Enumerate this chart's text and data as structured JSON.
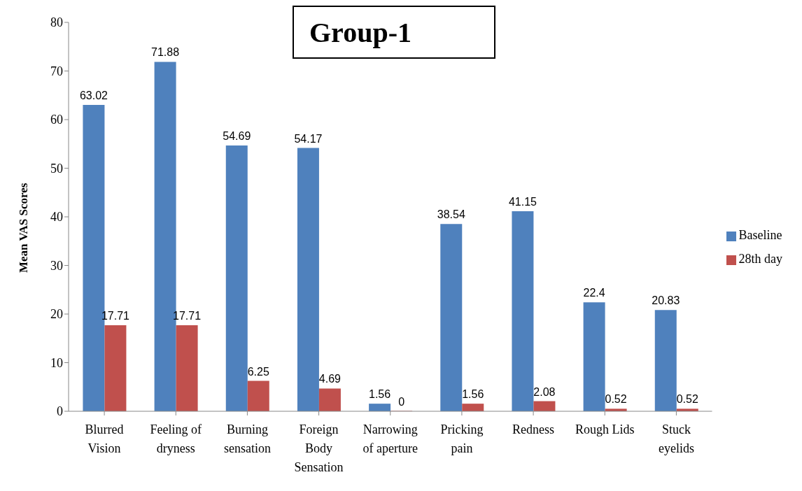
{
  "chart_data": {
    "type": "bar",
    "title": "Group-1",
    "ylabel": "Mean VAS Scores",
    "categories": [
      "Blurred Vision",
      "Feeling of dryness",
      "Burning sensation",
      "Foreign Body Sensation",
      "Narrowing of aperture",
      "Pricking pain",
      "Redness",
      "Rough Lids",
      "Stuck eyelids"
    ],
    "series": [
      {
        "name": "Baseline",
        "color": "#4f81bd",
        "values": [
          63.02,
          71.88,
          54.69,
          54.17,
          1.56,
          38.54,
          41.15,
          22.4,
          20.83
        ]
      },
      {
        "name": "28th day",
        "color": "#c0504d",
        "values": [
          17.71,
          17.71,
          6.25,
          4.69,
          0,
          1.56,
          2.08,
          0.52,
          0.52
        ]
      }
    ],
    "ylim": [
      0,
      80
    ],
    "yticks": [
      0,
      10,
      20,
      30,
      40,
      50,
      60,
      70,
      80
    ],
    "data_labels": true,
    "legend": "right",
    "grid": false
  }
}
